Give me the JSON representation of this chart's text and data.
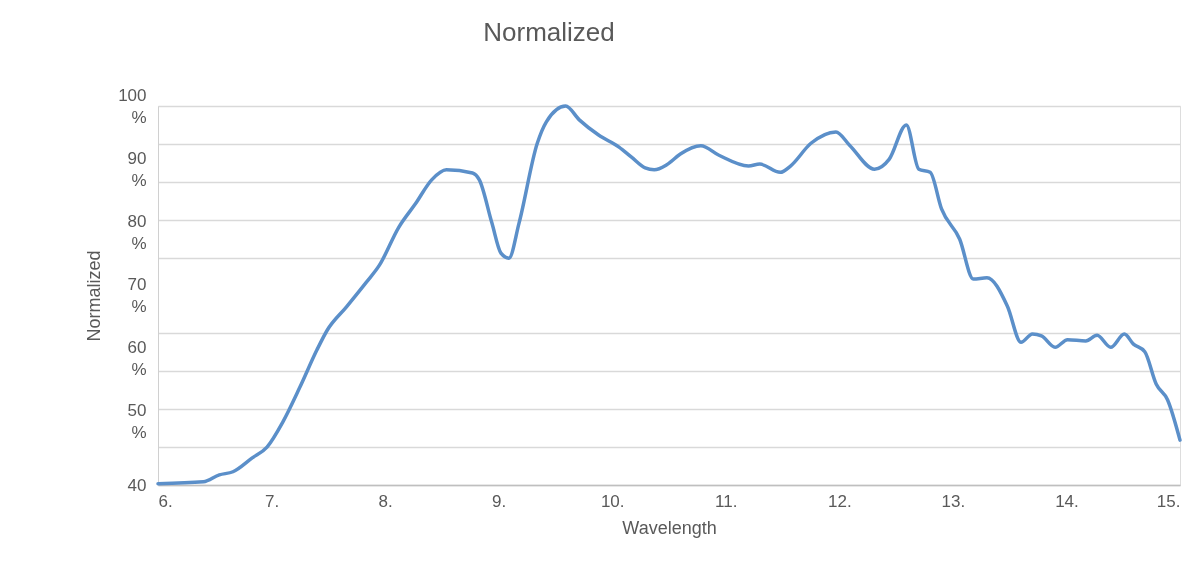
{
  "chart_data": {
    "type": "line",
    "title": "Normalized",
    "xlabel": "Wavelength",
    "ylabel": "Normalized",
    "x": [
      6.0,
      6.4,
      6.54,
      6.66,
      6.83,
      6.96,
      7.1,
      7.25,
      7.4,
      7.49,
      7.66,
      7.83,
      7.95,
      8.12,
      8.27,
      8.41,
      8.54,
      8.77,
      8.83,
      8.94,
      9.02,
      9.09,
      9.18,
      9.34,
      9.42,
      9.59,
      9.71,
      9.88,
      10.06,
      10.17,
      10.29,
      10.37,
      10.48,
      10.6,
      10.78,
      10.94,
      11.2,
      11.3,
      11.48,
      11.57,
      11.75,
      11.97,
      12.09,
      12.31,
      12.44,
      12.59,
      12.7,
      12.8,
      12.9,
      13.06,
      13.18,
      13.3,
      13.48,
      13.6,
      13.7,
      13.78,
      13.9,
      14.01,
      14.17,
      14.27,
      14.39,
      14.51,
      14.59,
      14.69,
      14.79,
      14.89,
      15.0
    ],
    "series": [
      {
        "color": "#5b8fc9",
        "values": [
          40.2,
          40.5,
          41.6,
          42.1,
          44.3,
          46.0,
          50.0,
          55.5,
          61.4,
          64.5,
          68.2,
          72.0,
          74.8,
          80.8,
          84.6,
          88.3,
          89.9,
          89.4,
          88.3,
          81.5,
          76.7,
          75.9,
          81.5,
          94.1,
          97.5,
          100.0,
          97.8,
          95.4,
          93.5,
          91.9,
          90.2,
          89.9,
          90.7,
          92.4,
          93.7,
          92.2,
          90.5,
          90.8,
          89.5,
          90.5,
          94.1,
          95.9,
          93.8,
          90.0,
          91.6,
          97.0,
          90.0,
          89.5,
          83.7,
          78.9,
          72.6,
          72.8,
          68.3,
          62.6,
          63.9,
          63.6,
          61.8,
          63.0,
          62.8,
          63.7,
          61.8,
          63.9,
          62.3,
          61.1,
          56.0,
          53.5,
          47.1
        ]
      }
    ],
    "xlim": [
      6,
      15
    ],
    "xticks": [
      {
        "value": 6,
        "label": "6."
      },
      {
        "value": 7,
        "label": "7."
      },
      {
        "value": 8,
        "label": "8."
      },
      {
        "value": 9,
        "label": "9."
      },
      {
        "value": 10,
        "label": "10."
      },
      {
        "value": 11,
        "label": "11."
      },
      {
        "value": 12,
        "label": "12."
      },
      {
        "value": 13,
        "label": "13."
      },
      {
        "value": 14,
        "label": "14."
      },
      {
        "value": 15,
        "label": "15."
      }
    ],
    "ylim": [
      40,
      100
    ],
    "yticks": [
      40,
      {
        "value": 46,
        "label": null
      },
      {
        "value": 50,
        "label": "50\n%"
      },
      {
        "value": 52,
        "label": null
      },
      {
        "value": 58,
        "label": null
      },
      {
        "value": 60,
        "label": "60\n%"
      },
      {
        "value": 64,
        "label": null
      },
      {
        "value": 70,
        "label": "70\n%"
      },
      {
        "value": 76,
        "label": null
      },
      {
        "value": 80,
        "label": "80\n%"
      },
      {
        "value": 82,
        "label": null
      },
      {
        "value": 88,
        "label": null
      },
      {
        "value": 90,
        "label": "90\n%"
      },
      {
        "value": 94,
        "label": null
      },
      {
        "value": 100,
        "label": "100\n%"
      }
    ],
    "grid": "y",
    "marker": "none",
    "line_style": "solid"
  }
}
